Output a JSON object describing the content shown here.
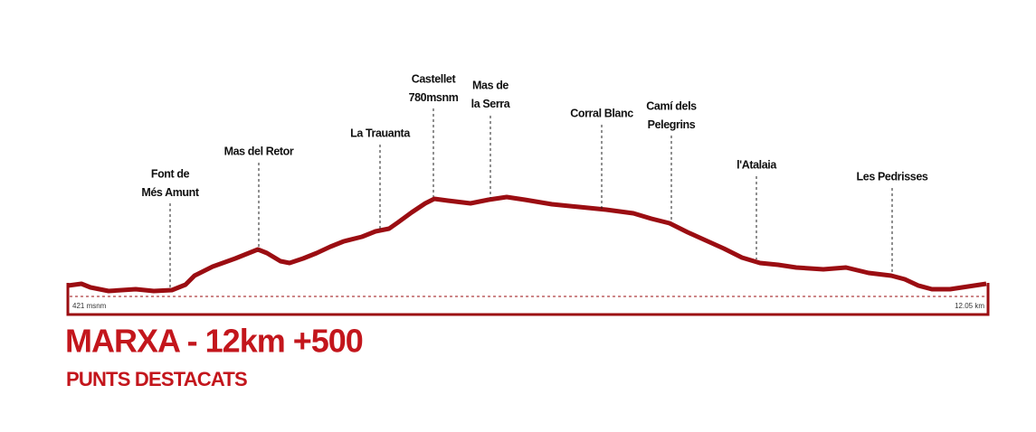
{
  "title": "MARXA - 12km +500",
  "subtitle": "PUNTS DESTACATS",
  "profile": {
    "start_label": "421 msnm",
    "end_label": "12.05 km"
  },
  "points": [
    {
      "lines": [
        "Font de",
        "Més Amunt"
      ]
    },
    {
      "lines": [
        "Mas del Retor"
      ]
    },
    {
      "lines": [
        "La Trauanta"
      ]
    },
    {
      "lines": [
        "Castellet",
        "780msnm"
      ],
      "color": "#b5121b"
    },
    {
      "lines": [
        "Mas de",
        "la Serra"
      ]
    },
    {
      "lines": [
        "Corral Blanc"
      ]
    },
    {
      "lines": [
        "Camí dels",
        "Pelegrins"
      ]
    },
    {
      "lines": [
        "l'Atalaia"
      ]
    },
    {
      "lines": [
        "Les Pedrisses"
      ]
    }
  ]
}
